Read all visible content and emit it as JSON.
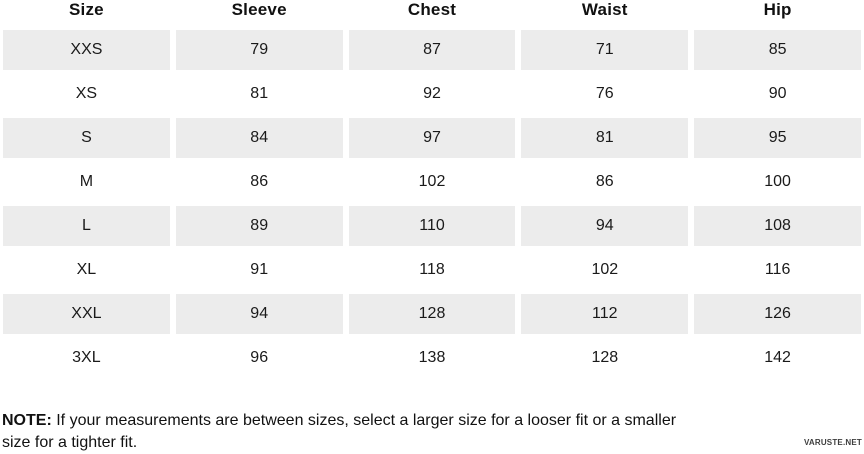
{
  "table": {
    "columns": [
      "Size",
      "Sleeve",
      "Chest",
      "Waist",
      "Hip"
    ],
    "rows": [
      [
        "XXS",
        "79",
        "87",
        "71",
        "85"
      ],
      [
        "XS",
        "81",
        "92",
        "76",
        "90"
      ],
      [
        "S",
        "84",
        "97",
        "81",
        "95"
      ],
      [
        "M",
        "86",
        "102",
        "86",
        "100"
      ],
      [
        "L",
        "89",
        "110",
        "94",
        "108"
      ],
      [
        "XL",
        "91",
        "118",
        "102",
        "116"
      ],
      [
        "XXL",
        "94",
        "128",
        "112",
        "126"
      ],
      [
        "3XL",
        "96",
        "138",
        "128",
        "142"
      ]
    ],
    "shaded_row_indices": [
      0,
      2,
      4,
      6
    ]
  },
  "note": {
    "label": "NOTE:",
    "line1": " If your measurements are between sizes, select a larger size for a looser fit or a smaller",
    "line2": "size for a tighter fit."
  },
  "watermark": "VARUSTE.NET",
  "colors": {
    "row_stripe": "#ececec",
    "text": "#1a1a1a",
    "background": "#ffffff"
  }
}
